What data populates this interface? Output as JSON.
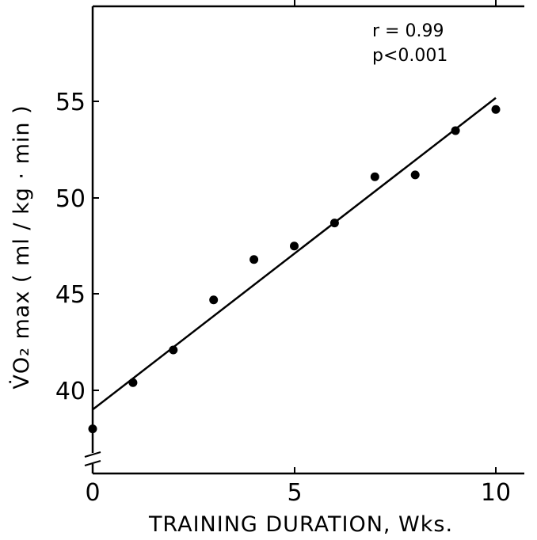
{
  "chart_data": {
    "type": "scatter",
    "title": "",
    "xlabel": "TRAINING DURATION, Wks.",
    "ylabel": "V̇O₂ max ( ml / kg · min )",
    "xlim": [
      0,
      11
    ],
    "ylim": [
      36,
      60
    ],
    "x_ticks": [
      "0",
      "5",
      "10"
    ],
    "y_ticks": [
      "40",
      "45",
      "50",
      "55"
    ],
    "grid": false,
    "points": [
      {
        "x": 0,
        "y": 38.0
      },
      {
        "x": 1,
        "y": 40.4
      },
      {
        "x": 2,
        "y": 42.1
      },
      {
        "x": 3,
        "y": 44.7
      },
      {
        "x": 4,
        "y": 46.8
      },
      {
        "x": 5,
        "y": 47.5
      },
      {
        "x": 6,
        "y": 48.7
      },
      {
        "x": 7,
        "y": 51.1
      },
      {
        "x": 8,
        "y": 51.2
      },
      {
        "x": 9,
        "y": 53.5
      },
      {
        "x": 10,
        "y": 54.6
      }
    ],
    "fit_line": {
      "x": [
        0,
        10
      ],
      "y": [
        39.0,
        55.2
      ]
    },
    "annotations": [
      "r = 0.99",
      "p<0.001"
    ]
  }
}
